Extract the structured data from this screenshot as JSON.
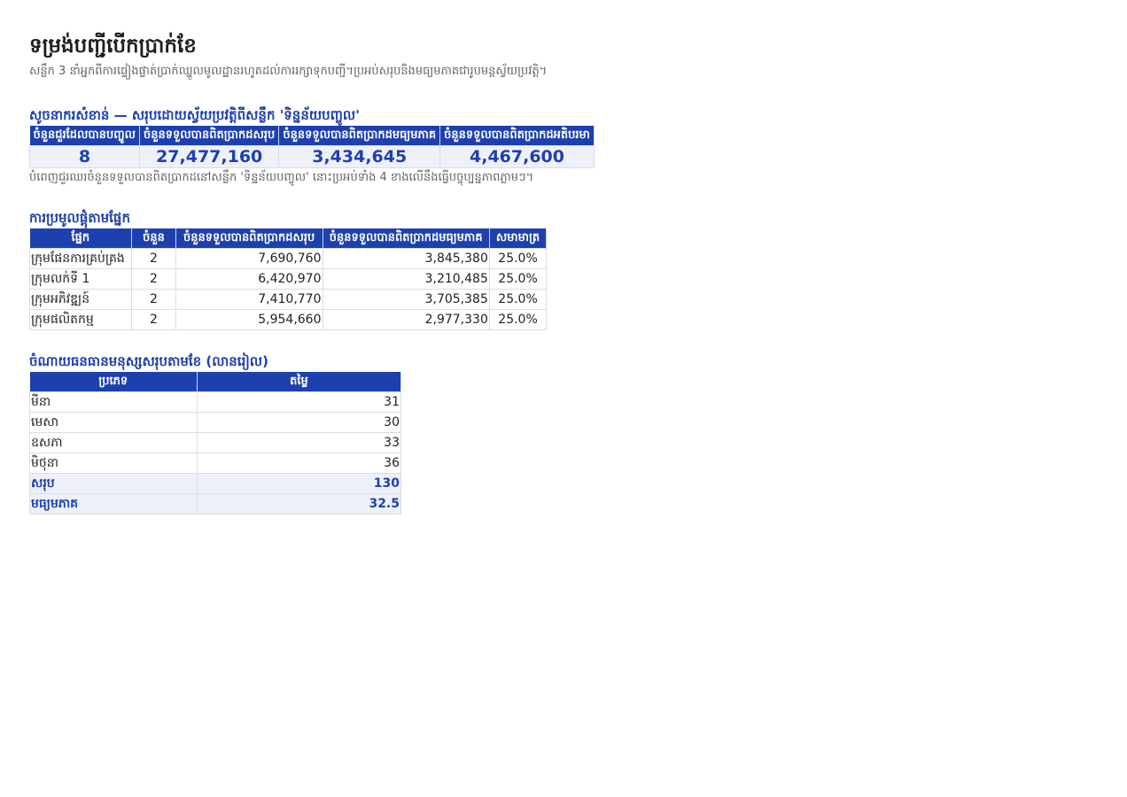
{
  "header": {
    "title": "ទម្រង់បញ្ជីបើកប្រាក់ខែ",
    "subtitle": "សន្លឹក 3 នាំអ្នកពីការផ្ទៀងផ្ទាត់ប្រាក់ឈ្នួលមូលដ្ឋានរហូតដល់ការរក្សាទុកបញ្ជី។ប្រអប់សរុបនិងមធ្យមភាគជារូបមន្តស្វ័យប្រវត្តិ។"
  },
  "kpi": {
    "title": "សូចនាករសំខាន់ — សរុបដោយស្វ័យប្រវត្តិពីសន្លឹក 'ទិន្នន័យបញ្ចូល'",
    "headers": [
      "ចំនួនជួរដែលបានបញ្ចូល",
      "ចំនួនទទួលបានពិតប្រាកដសរុប",
      "ចំនួនទទួលបានពិតប្រាកដមធ្យមភាគ",
      "ចំនួនទទួលបានពិតប្រាកដអតិបរមា"
    ],
    "values": [
      "8",
      "27,477,160",
      "3,434,645",
      "4,467,600"
    ],
    "note": "បំពេញជួរឈរចំនួនទទួលបានពិតប្រាកដនៅសន្លឹក 'ទិន្នន័យបញ្ចូល' នោះប្រអប់ទាំង 4 ខាងលើនឹងធ្វើបច្ចុប្បន្នភាពភ្លាមៗ។"
  },
  "groups": {
    "title": "ការប្រមូលផ្តុំតាមផ្នែក",
    "headers": [
      "ផ្នែក",
      "ចំនួន",
      "ចំនួនទទួលបានពិតប្រាកដសរុប",
      "ចំនួនទទួលបានពិតប្រាកដមធ្យមភាគ",
      "សមាមាត្រ"
    ],
    "rows": [
      {
        "name": "ក្រុមផែនការគ្រប់គ្រង",
        "count": "2",
        "total": "7,690,760",
        "avg": "3,845,380",
        "ratio": "25.0%"
      },
      {
        "name": "ក្រុមលក់ទី 1",
        "count": "2",
        "total": "6,420,970",
        "avg": "3,210,485",
        "ratio": "25.0%"
      },
      {
        "name": "ក្រុមអភិវឌ្ឍន៍",
        "count": "2",
        "total": "7,410,770",
        "avg": "3,705,385",
        "ratio": "25.0%"
      },
      {
        "name": "ក្រុមផលិតកម្ម",
        "count": "2",
        "total": "5,954,660",
        "avg": "2,977,330",
        "ratio": "25.0%"
      }
    ]
  },
  "monthly": {
    "title": "ចំណាយធនធានមនុស្សសរុបតាមខែ (លានរៀល)",
    "headers": [
      "ប្រភេទ",
      "តម្លៃ"
    ],
    "rows": [
      {
        "label": "មីនា",
        "value": "31"
      },
      {
        "label": "មេសា",
        "value": "30"
      },
      {
        "label": "ឧសភា",
        "value": "33"
      },
      {
        "label": "មិថុនា",
        "value": "36"
      }
    ],
    "total": {
      "label": "សរុប",
      "value": "130"
    },
    "average": {
      "label": "មធ្យមភាគ",
      "value": "32.5"
    }
  }
}
